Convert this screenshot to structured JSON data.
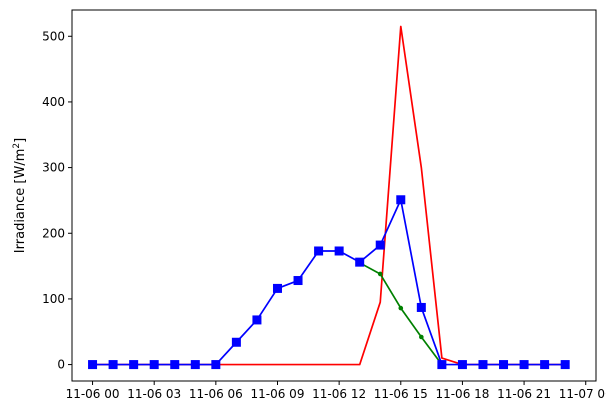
{
  "chart_data": {
    "type": "line",
    "title": "",
    "xlabel": "",
    "ylabel": "Irradiance [W/m",
    "ylabel_superscript": "2",
    "ylabel_suffix": "]",
    "x": [
      "11-06 00:00",
      "11-06 01:00",
      "11-06 02:00",
      "11-06 03:00",
      "11-06 04:00",
      "11-06 05:00",
      "11-06 06:00",
      "11-06 07:00",
      "11-06 08:00",
      "11-06 09:00",
      "11-06 10:00",
      "11-06 11:00",
      "11-06 12:00",
      "11-06 13:00",
      "11-06 14:00",
      "11-06 15:00",
      "11-06 16:00",
      "11-06 17:00",
      "11-06 18:00",
      "11-06 19:00",
      "11-06 20:00",
      "11-06 21:00",
      "11-06 22:00",
      "11-06 23:00"
    ],
    "xlim": [
      "11-05 23:00",
      "11-07 00:30"
    ],
    "x_tick_labels": [
      "11-06 00",
      "11-06 03",
      "11-06 06",
      "11-06 09",
      "11-06 12",
      "11-06 15",
      "11-06 18",
      "11-06 21",
      "11-07 00"
    ],
    "ylim": [
      -25,
      540
    ],
    "y_ticks": [
      0,
      100,
      200,
      300,
      400,
      500
    ],
    "grid": false,
    "legend": false,
    "series": [
      {
        "color": "#ff0000",
        "marker": "none",
        "x": [
          "11-06 00:00",
          "11-06 13:00",
          "11-06 14:00",
          "11-06 15:00",
          "11-06 16:00",
          "11-06 17:00",
          "11-06 18:00",
          "11-06 23:00"
        ],
        "values": [
          0,
          0,
          95,
          515,
          300,
          10,
          0,
          0
        ]
      },
      {
        "color": "#008000",
        "marker": "dot",
        "x": [
          "11-06 13:00",
          "11-06 14:00",
          "11-06 15:00",
          "11-06 16:00",
          "11-06 17:00"
        ],
        "values": [
          155,
          138,
          86,
          42,
          0
        ]
      },
      {
        "color": "#0000ff",
        "marker": "square",
        "x": [
          "11-06 00:00",
          "11-06 01:00",
          "11-06 02:00",
          "11-06 03:00",
          "11-06 04:00",
          "11-06 05:00",
          "11-06 06:00",
          "11-06 07:00",
          "11-06 08:00",
          "11-06 09:00",
          "11-06 10:00",
          "11-06 11:00",
          "11-06 12:00",
          "11-06 13:00",
          "11-06 14:00",
          "11-06 15:00",
          "11-06 16:00",
          "11-06 17:00",
          "11-06 18:00",
          "11-06 19:00",
          "11-06 20:00",
          "11-06 21:00",
          "11-06 22:00",
          "11-06 23:00"
        ],
        "values": [
          0,
          0,
          0,
          0,
          0,
          0,
          0,
          34,
          68,
          116,
          128,
          173,
          173,
          156,
          182,
          251,
          87,
          0,
          0,
          0,
          0,
          0,
          0,
          0
        ]
      }
    ]
  }
}
